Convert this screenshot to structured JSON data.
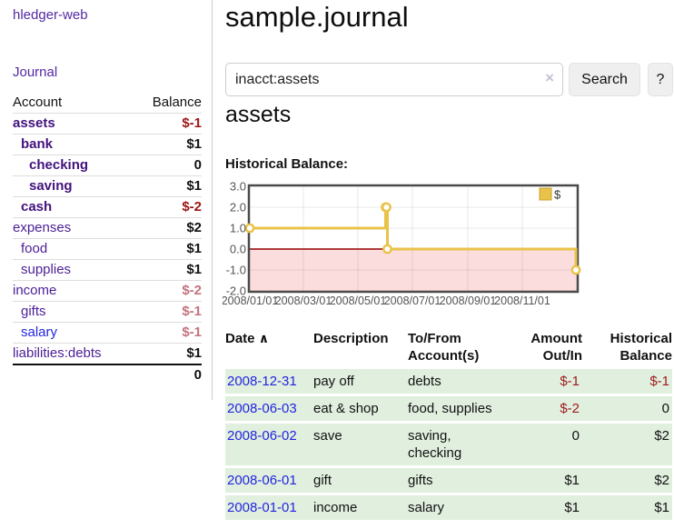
{
  "colors": {
    "purple_link": "#5229a3",
    "blue_link": "#2326de",
    "negative_strong": "#9e1414",
    "negative_soft": "#c4737e",
    "row_green": "#e1efdf",
    "chart_gold": "#e9c349",
    "chart_pink": "#fbdddd",
    "zero_line_red": "#990000"
  },
  "sidebar": {
    "app_title": "hledger-web",
    "journal_link": "Journal",
    "accounts": {
      "header": {
        "account": "Account",
        "balance": "Balance"
      },
      "rows": [
        {
          "name": "assets",
          "balance": "$-1",
          "level": 0,
          "selected": true,
          "neg": "strong",
          "link": "purple"
        },
        {
          "name": "bank",
          "balance": "$1",
          "level": 1,
          "selected": true,
          "neg": null,
          "link": "purple"
        },
        {
          "name": "checking",
          "balance": "0",
          "level": 2,
          "selected": true,
          "neg": null,
          "link": "purple"
        },
        {
          "name": "saving",
          "balance": "$1",
          "level": 2,
          "selected": true,
          "neg": null,
          "link": "purple"
        },
        {
          "name": "cash",
          "balance": "$-2",
          "level": 1,
          "selected": true,
          "neg": "strong",
          "link": "purple"
        },
        {
          "name": "expenses",
          "balance": "$2",
          "level": 0,
          "selected": false,
          "neg": null,
          "link": "purple"
        },
        {
          "name": "food",
          "balance": "$1",
          "level": 1,
          "selected": false,
          "neg": null,
          "link": "purple"
        },
        {
          "name": "supplies",
          "balance": "$1",
          "level": 1,
          "selected": false,
          "neg": null,
          "link": "purple"
        },
        {
          "name": "income",
          "balance": "$-2",
          "level": 0,
          "selected": false,
          "neg": "soft",
          "link": "purple"
        },
        {
          "name": "gifts",
          "balance": "$-1",
          "level": 1,
          "selected": false,
          "neg": "soft",
          "link": "purple"
        },
        {
          "name": "salary",
          "balance": "$-1",
          "level": 1,
          "selected": false,
          "neg": "soft",
          "link": "blue"
        },
        {
          "name": "liabilities:debts",
          "balance": "$1",
          "level": 0,
          "selected": false,
          "neg": null,
          "link": "purple",
          "last": true
        }
      ],
      "total": "0"
    }
  },
  "main": {
    "title": "sample.journal",
    "search": {
      "value": "inacct:assets",
      "clear_icon": "×",
      "button_label": "Search",
      "help_label": "?"
    },
    "account_heading": "assets",
    "chart_label": "Historical Balance:"
  },
  "chart_data": {
    "type": "line",
    "step": true,
    "title": "Historical Balance",
    "series": [
      {
        "name": "$",
        "points": [
          {
            "date": "2008-01-01",
            "value": 1
          },
          {
            "date": "2008-06-01",
            "value": 2
          },
          {
            "date": "2008-06-02",
            "value": 2
          },
          {
            "date": "2008-06-03",
            "value": 0
          },
          {
            "date": "2008-12-31",
            "value": -1
          }
        ]
      }
    ],
    "x_range": [
      "2008-01-01",
      "2009-01-01"
    ],
    "ylim": [
      -2,
      3
    ],
    "y_ticks": [
      {
        "value": 3,
        "label": "3.0"
      },
      {
        "value": 2,
        "label": "2.0"
      },
      {
        "value": 1,
        "label": "1.0"
      },
      {
        "value": 0,
        "label": "0.0"
      },
      {
        "value": -1,
        "label": "-1.0"
      },
      {
        "value": -2,
        "label": "-2.0"
      }
    ],
    "x_ticks": [
      {
        "date": "2008-01-01",
        "label": "2008/01/01"
      },
      {
        "date": "2008-03-01",
        "label": "2008/03/01"
      },
      {
        "date": "2008-05-01",
        "label": "2008/05/01"
      },
      {
        "date": "2008-07-01",
        "label": "2008/07/01"
      },
      {
        "date": "2008-09-01",
        "label": "2008/09/01"
      },
      {
        "date": "2008-11-01",
        "label": "2008/11/01"
      }
    ],
    "grid": true,
    "zero_line": true,
    "negative_region_shaded": true,
    "legend": {
      "position": "top-right",
      "label": "$"
    }
  },
  "table": {
    "headers": {
      "date": "Date",
      "sort_indicator": "∧",
      "description": "Description",
      "accounts": "To/From Account(s)",
      "amount": "Amount Out/In",
      "balance": "Historical Balance"
    },
    "rows": [
      {
        "date": "2008-12-31",
        "description": "pay off",
        "accounts": "debts",
        "amount": "$-1",
        "amount_neg": true,
        "balance": "$-1",
        "balance_neg": true
      },
      {
        "date": "2008-06-03",
        "description": "eat & shop",
        "accounts": "food, supplies",
        "amount": "$-2",
        "amount_neg": true,
        "balance": "0",
        "balance_neg": false
      },
      {
        "date": "2008-06-02",
        "description": "save",
        "accounts": "saving, checking",
        "amount": "0",
        "amount_neg": false,
        "balance": "$2",
        "balance_neg": false
      },
      {
        "date": "2008-06-01",
        "description": "gift",
        "accounts": "gifts",
        "amount": "$1",
        "amount_neg": false,
        "balance": "$2",
        "balance_neg": false
      },
      {
        "date": "2008-01-01",
        "description": "income",
        "accounts": "salary",
        "amount": "$1",
        "amount_neg": false,
        "balance": "$1",
        "balance_neg": false
      }
    ]
  }
}
